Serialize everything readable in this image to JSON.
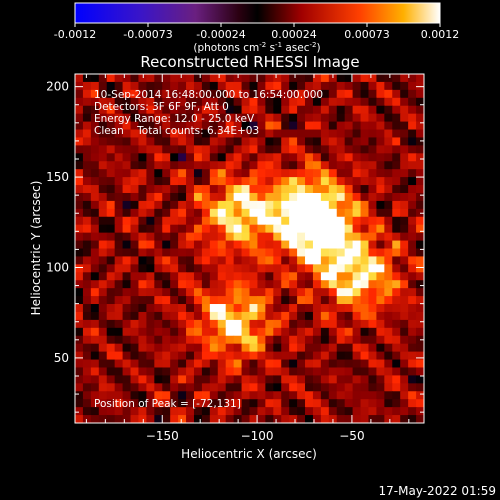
{
  "colorbar": {
    "ticks": [
      "-0.0012",
      "-0.00073",
      "-0.00024",
      "0.00024",
      "0.00073",
      "0.0012"
    ],
    "unit_main": "(photons cm",
    "unit_exp1": "-2",
    "unit_mid": " s",
    "unit_exp2": "-1",
    "unit_end": " asec",
    "unit_exp3": "-2",
    "unit_close": ")",
    "range": [
      -0.0012,
      0.0012
    ]
  },
  "annotations": {
    "time": "10-Sep-2014 16:48:00.000 to 16:54:00.000",
    "detectors": "Detectors: 3F 6F 9F, Att 0",
    "energy": "Energy Range: 12.0 - 25.0 keV",
    "clean": "Clean    Total counts: 6.34E+03",
    "peak": "Position of Peak = [-72,131]"
  },
  "footer": {
    "timestamp": "17-May-2022 01:59"
  },
  "chart_data": {
    "type": "heatmap",
    "title": "Reconstructed RHESSI Image",
    "xlabel": "Heliocentric X (arcsec)",
    "ylabel": "Heliocentric Y (arcsec)",
    "xlim": [
      -196,
      -12
    ],
    "ylim": [
      14,
      207
    ],
    "xticks": [
      -150,
      -100,
      -50
    ],
    "yticks": [
      50,
      100,
      150,
      200
    ],
    "peak_position": [
      -72,
      131
    ],
    "sources": [
      {
        "x": -72,
        "y": 131,
        "intensity": 1.0
      },
      {
        "x": -110,
        "y": 130,
        "intensity": 0.75
      },
      {
        "x": -112,
        "y": 70,
        "intensity": 0.7
      },
      {
        "x": -45,
        "y": 94,
        "intensity": 0.62
      },
      {
        "x": -62,
        "y": 112,
        "intensity": 0.5
      }
    ],
    "value_range": [
      -0.0012,
      0.0012
    ]
  }
}
